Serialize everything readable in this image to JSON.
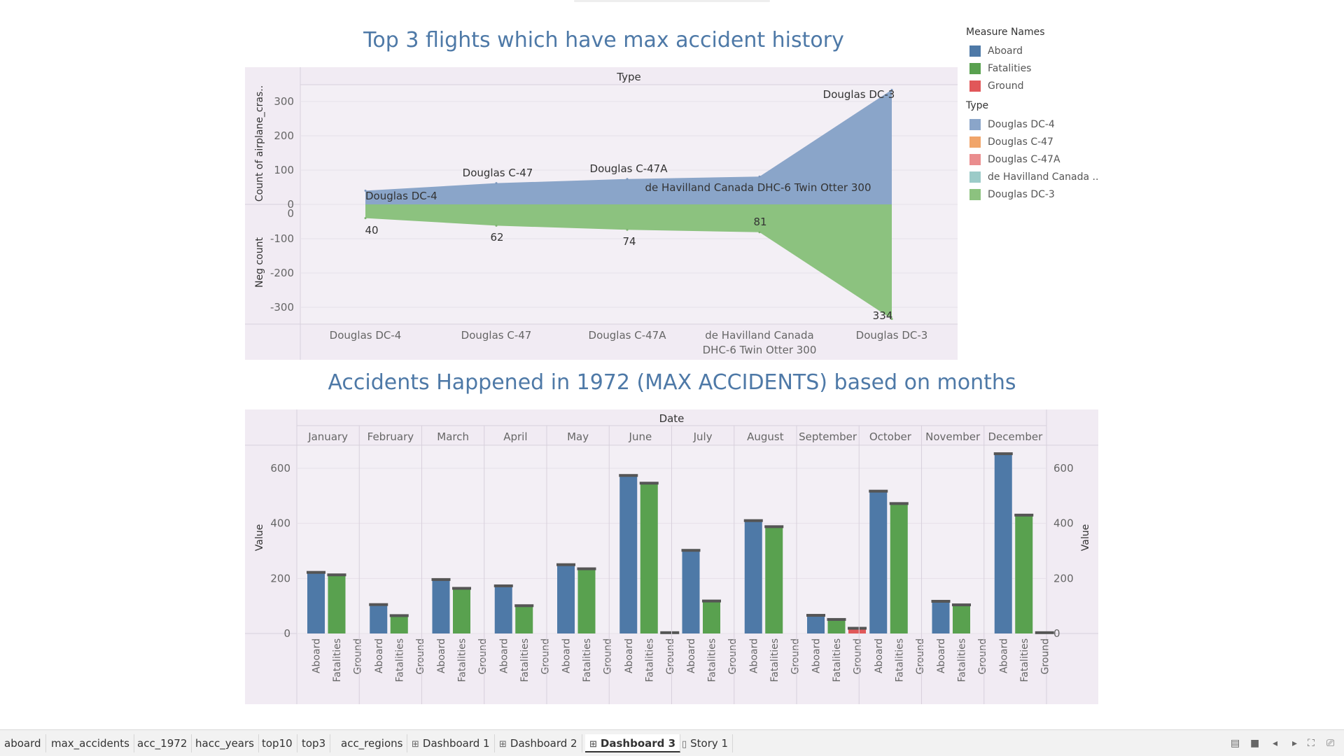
{
  "chart_data": [
    {
      "type": "area",
      "title": "Top 3 flights which have max accident history",
      "column_header": "Type",
      "categories": [
        "Douglas DC-4",
        "Douglas C-47",
        "Douglas C-47A",
        "de Havilland Canada DHC-6 Twin Otter 300",
        "Douglas DC-3"
      ],
      "upper": {
        "ylabel": "Count of airplane_cras..",
        "ylim": [
          0,
          330
        ],
        "ticks": [
          0,
          100,
          200,
          300
        ],
        "values": [
          40,
          62,
          74,
          81,
          334
        ],
        "labels": [
          "Douglas DC-4",
          "Douglas C-47",
          "Douglas C-47A",
          "de Havilland Canada DHC-6 Twin Otter 300",
          "Douglas DC-3"
        ]
      },
      "lower": {
        "ylabel": "Neg count",
        "ylim": [
          -340,
          0
        ],
        "ticks": [
          0,
          -100,
          -200,
          -300
        ],
        "values": [
          -40,
          -62,
          -74,
          -81,
          -334
        ],
        "labels": [
          "40",
          "62",
          "74",
          "81",
          "334"
        ]
      },
      "legend": {
        "measure_title": "Measure Names",
        "measures": [
          {
            "name": "Aboard",
            "color": "#4e79a7"
          },
          {
            "name": "Fatalities",
            "color": "#59a14f"
          },
          {
            "name": "Ground",
            "color": "#e15759"
          }
        ],
        "type_title": "Type",
        "types": [
          {
            "name": "Douglas DC-4",
            "color": "#8aa5c9"
          },
          {
            "name": "Douglas C-47",
            "color": "#f1a56a"
          },
          {
            "name": "Douglas C-47A",
            "color": "#ea8d8e"
          },
          {
            "name": "de Havilland Canada ..",
            "color": "#9ccbc8"
          },
          {
            "name": "Douglas DC-3",
            "color": "#8cc27f"
          }
        ]
      },
      "colors": {
        "upper": "#8aa5c9",
        "lower": "#8cc27f",
        "panel": "#f1ebf3"
      }
    },
    {
      "type": "bar",
      "title": "Accidents Happened in 1972 (MAX ACCIDENTS) based on months",
      "column_header": "Date",
      "ylabel": "Value",
      "ylim": [
        0,
        680
      ],
      "ticks": [
        0,
        200,
        400,
        600
      ],
      "categories": [
        "January",
        "February",
        "March",
        "April",
        "May",
        "June",
        "July",
        "August",
        "September",
        "October",
        "November",
        "December"
      ],
      "measures": [
        "Aboard",
        "Fatalities",
        "Ground"
      ],
      "series": [
        {
          "name": "Aboard",
          "color": "#4e79a7",
          "values": [
            222,
            105,
            196,
            173,
            250,
            574,
            302,
            410,
            66,
            517,
            117,
            653
          ]
        },
        {
          "name": "Fatalities",
          "color": "#59a14f",
          "values": [
            213,
            65,
            164,
            101,
            235,
            546,
            118,
            388,
            51,
            472,
            104,
            430
          ]
        },
        {
          "name": "Ground",
          "color": "#e15759",
          "values": [
            0,
            0,
            0,
            0,
            0,
            3,
            0,
            0,
            19,
            0,
            0,
            3
          ]
        }
      ]
    }
  ],
  "tabs": [
    {
      "label": "aboard",
      "icon": ""
    },
    {
      "label": "max_accidents",
      "icon": ""
    },
    {
      "label": "acc_1972",
      "icon": ""
    },
    {
      "label": "hacc_years",
      "icon": ""
    },
    {
      "label": "top10",
      "icon": ""
    },
    {
      "label": "top3",
      "icon": ""
    },
    {
      "label": "acc_regions",
      "icon": ""
    },
    {
      "label": "Dashboard 1",
      "icon": "⊞"
    },
    {
      "label": "Dashboard 2",
      "icon": "⊞"
    },
    {
      "label": "Dashboard 3",
      "icon": "⊞",
      "active": true
    },
    {
      "label": "Story 1",
      "icon": "▯"
    }
  ],
  "controls": [
    "sheet-sorter-icon",
    "filmstrip-icon",
    "prev-icon",
    "next-icon",
    "fullscreen-icon",
    "presentation-icon"
  ]
}
